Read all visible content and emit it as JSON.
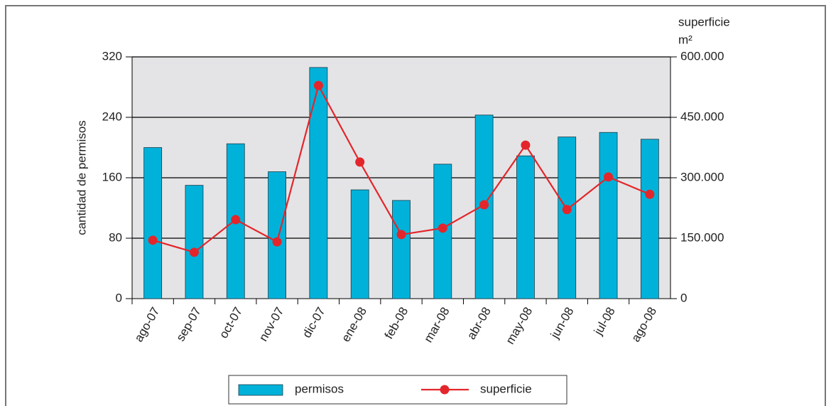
{
  "chart_data": {
    "type": "bar-line",
    "y_label": "cantidad de permisos",
    "y2_label": "superficie",
    "y2_unit": "m²",
    "categories": [
      "ago-07",
      "sep-07",
      "oct-07",
      "nov-07",
      "dic-07",
      "ene-08",
      "feb-08",
      "mar-08",
      "abr-08",
      "may-08",
      "jun-08",
      "jul-08",
      "ago-08"
    ],
    "series": [
      {
        "name": "permisos",
        "type": "bar",
        "color": "#00b2d9",
        "values": [
          200,
          150,
          205,
          168,
          306,
          144,
          130,
          178,
          243,
          189,
          214,
          220,
          211
        ]
      },
      {
        "name": "superficie",
        "type": "line",
        "axis": "y2",
        "color": "#e3262b",
        "values": [
          145000,
          115000,
          196000,
          141000,
          529000,
          339000,
          159000,
          175000,
          233000,
          381000,
          221000,
          302000,
          259000
        ]
      }
    ],
    "ylim": [
      0,
      320
    ],
    "yticks": [
      0,
      80,
      160,
      240,
      320
    ],
    "y2lim": [
      0,
      600000
    ],
    "y2ticks": [
      0,
      {
        "value": 150000,
        "label": "150.000"
      },
      {
        "value": 300000,
        "label": "300.000"
      },
      {
        "value": 450000,
        "label": "450.000"
      },
      {
        "value": 600000,
        "label": "600.000"
      }
    ],
    "grid": true,
    "legend": "bottom"
  }
}
